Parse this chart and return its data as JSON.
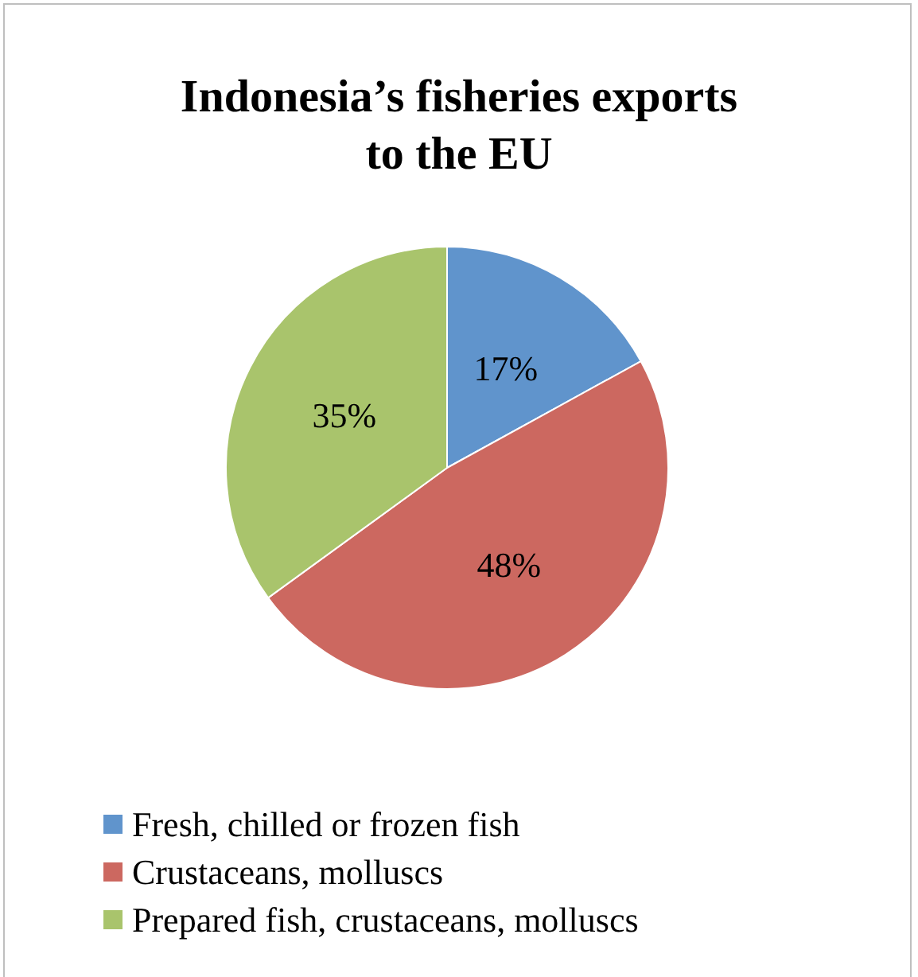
{
  "chart_data": {
    "type": "pie",
    "title": "Indonesia’s fisheries exports\nto the EU",
    "categories": [
      "Fresh, chilled or frozen fish",
      "Crustaceans, molluscs",
      "Prepared fish, crustaceans, molluscs"
    ],
    "values": [
      17,
      48,
      35
    ],
    "colors": [
      "#6094cc",
      "#cc6860",
      "#a9c46c"
    ],
    "value_labels": [
      "17%",
      "48%",
      "35%"
    ],
    "legend": "bottom left"
  }
}
